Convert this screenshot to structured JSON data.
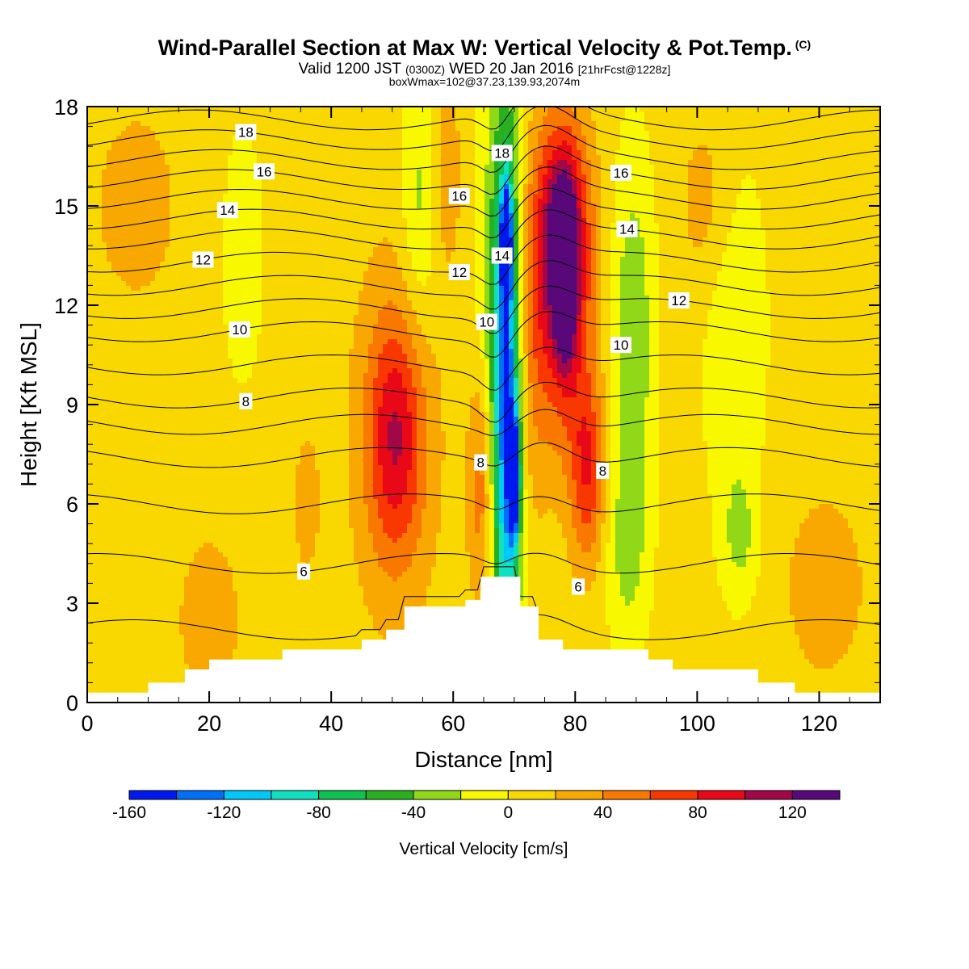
{
  "header": {
    "title": "Wind-Parallel Section at Max W: Vertical Velocity & Pot.Temp.",
    "copyright": "(C)",
    "valid_prefix": "Valid 1200 JST",
    "valid_utc": "(0300Z)",
    "valid_date": "WED 20 Jan 2016",
    "forecast": "[21hrFcst@1228z]",
    "boxwmax": "boxWmax=102@37.23,139.93,2074m"
  },
  "chart_data": {
    "type": "heatmap",
    "xlabel": "Distance [nm]",
    "ylabel": "Height [Kft MSL]",
    "xlim": [
      0,
      130
    ],
    "ylim": [
      0,
      18
    ],
    "x_ticks": [
      0,
      20,
      40,
      60,
      80,
      100,
      120
    ],
    "y_ticks": [
      0,
      3,
      6,
      9,
      12,
      15,
      18
    ],
    "grid": false,
    "colorbar": {
      "label": "Vertical Velocity [cm/s]",
      "levels": [
        -160,
        -140,
        -120,
        -100,
        -80,
        -60,
        -40,
        -20,
        0,
        20,
        40,
        60,
        80,
        100,
        120,
        140
      ],
      "tick_labels": [
        "-160",
        "-120",
        "-80",
        "-40",
        "0",
        "40",
        "80",
        "120"
      ],
      "colors": [
        "#0018f0",
        "#0070f8",
        "#00c8f8",
        "#10e0c0",
        "#10c050",
        "#28b020",
        "#90d818",
        "#f8f800",
        "#f8d800",
        "#f8a800",
        "#f87800",
        "#f83800",
        "#e80818",
        "#a00848",
        "#580878"
      ]
    },
    "field_blobs": [
      {
        "x": 67.5,
        "y": 9.0,
        "rx": 3.6,
        "ry": 9.5,
        "w": -60
      },
      {
        "x": 68.8,
        "y": 9.5,
        "rx": 2.0,
        "ry": 8.0,
        "w": -105
      },
      {
        "x": 68.7,
        "y": 14.0,
        "rx": 0.8,
        "ry": 1.5,
        "w": -150
      },
      {
        "x": 70.0,
        "y": 6.8,
        "rx": 0.9,
        "ry": 1.8,
        "w": -150
      },
      {
        "x": 78.0,
        "y": 12.5,
        "rx": 4.5,
        "ry": 4.5,
        "w": 95
      },
      {
        "x": 78.3,
        "y": 13.0,
        "rx": 1.5,
        "ry": 2.2,
        "w": 120
      },
      {
        "x": 77.5,
        "y": 14.5,
        "rx": 4.5,
        "ry": 3.0,
        "w": 60
      },
      {
        "x": 82.0,
        "y": 7.0,
        "rx": 2.8,
        "ry": 2.8,
        "w": 68
      },
      {
        "x": 64.8,
        "y": 6.5,
        "rx": 2.3,
        "ry": 4.0,
        "w": 65
      },
      {
        "x": 50.5,
        "y": 8.0,
        "rx": 4.5,
        "ry": 3.5,
        "w": 68
      },
      {
        "x": 50.5,
        "y": 8.0,
        "rx": 7.5,
        "ry": 6.0,
        "w": 28
      },
      {
        "x": 20.0,
        "y": 2.5,
        "rx": 5.0,
        "ry": 2.5,
        "w": 28
      },
      {
        "x": 36.0,
        "y": 6.0,
        "rx": 2.0,
        "ry": 2.0,
        "w": 28
      },
      {
        "x": 59.0,
        "y": 16.0,
        "rx": 2.5,
        "ry": 3.0,
        "w": 25
      },
      {
        "x": 73.0,
        "y": 10.0,
        "rx": 2.5,
        "ry": 5.0,
        "w": 25
      },
      {
        "x": 89.5,
        "y": 11.0,
        "rx": 3.5,
        "ry": 5.5,
        "w": -45
      },
      {
        "x": 88.5,
        "y": 4.5,
        "rx": 3.5,
        "ry": 3.0,
        "w": -30
      },
      {
        "x": 106.0,
        "y": 11.5,
        "rx": 5.0,
        "ry": 5.5,
        "w": -30
      },
      {
        "x": 107.0,
        "y": 5.0,
        "rx": 3.0,
        "ry": 2.0,
        "w": -30
      },
      {
        "x": 54.5,
        "y": 15.0,
        "rx": 3.0,
        "ry": 4.0,
        "w": -35
      },
      {
        "x": 25.5,
        "y": 13.5,
        "rx": 3.0,
        "ry": 3.5,
        "w": -28
      },
      {
        "x": 102.0,
        "y": 15.0,
        "rx": 5.0,
        "ry": 3.0,
        "w": 25
      },
      {
        "x": 121.0,
        "y": 3.5,
        "rx": 7.0,
        "ry": 3.0,
        "w": 24
      },
      {
        "x": 8.0,
        "y": 15.0,
        "rx": 7.0,
        "ry": 3.0,
        "w": 24
      }
    ],
    "terrain": [
      [
        0,
        0.3
      ],
      [
        10,
        0.3
      ],
      [
        10,
        0.6
      ],
      [
        16,
        0.6
      ],
      [
        16,
        1.0
      ],
      [
        20,
        1.0
      ],
      [
        20,
        1.3
      ],
      [
        32,
        1.3
      ],
      [
        32,
        1.6
      ],
      [
        45,
        1.6
      ],
      [
        45,
        1.9
      ],
      [
        49,
        1.9
      ],
      [
        49,
        2.2
      ],
      [
        52,
        2.2
      ],
      [
        52,
        2.9
      ],
      [
        62,
        2.9
      ],
      [
        62,
        3.1
      ],
      [
        64.5,
        3.1
      ],
      [
        64.5,
        3.8
      ],
      [
        71,
        3.8
      ],
      [
        71,
        2.9
      ],
      [
        74,
        2.9
      ],
      [
        74,
        1.9
      ],
      [
        78,
        1.9
      ],
      [
        78,
        1.6
      ],
      [
        92,
        1.6
      ],
      [
        92,
        1.3
      ],
      [
        96,
        1.3
      ],
      [
        96,
        1.0
      ],
      [
        110,
        1.0
      ],
      [
        110,
        0.6
      ],
      [
        116,
        0.6
      ],
      [
        116,
        0.3
      ],
      [
        130,
        0.3
      ]
    ],
    "isentropes": [
      {
        "base": 2.2,
        "label": null
      },
      {
        "base": 4.2,
        "label": "6",
        "lx": 35.5
      },
      {
        "base": 6.0,
        "label": null
      },
      {
        "base": 7.4,
        "label": "8",
        "lx": 64.5
      },
      {
        "base": 8.4,
        "label": null
      },
      {
        "base": 9.2,
        "label": "8",
        "lx": 26
      },
      {
        "base": 10.2,
        "label": null
      },
      {
        "base": 11.2,
        "label": "10",
        "lx": 25
      },
      {
        "base": 11.9,
        "label": "12",
        "lx": 97
      },
      {
        "base": 12.6,
        "label": null
      },
      {
        "base": 13.3,
        "label": "12",
        "lx": 19
      },
      {
        "base": 14.0,
        "label": null
      },
      {
        "base": 14.6,
        "label": "14",
        "lx": 23
      },
      {
        "base": 15.2,
        "label": null
      },
      {
        "base": 15.8,
        "label": "16",
        "lx": 29
      },
      {
        "base": 16.4,
        "label": null
      },
      {
        "base": 17.0,
        "label": "18",
        "lx": 26
      },
      {
        "base": 17.6,
        "label": null
      }
    ],
    "isentrope_labels": [
      {
        "text": "16",
        "x": 61.0,
        "y": 15.3
      },
      {
        "text": "18",
        "x": 68.0,
        "y": 16.6
      },
      {
        "text": "14",
        "x": 68.0,
        "y": 13.5
      },
      {
        "text": "12",
        "x": 61.0,
        "y": 13.0
      },
      {
        "text": "10",
        "x": 65.5,
        "y": 11.5
      },
      {
        "text": "16",
        "x": 87.5,
        "y": 16.0
      },
      {
        "text": "14",
        "x": 88.5,
        "y": 14.3
      },
      {
        "text": "10",
        "x": 87.5,
        "y": 10.8
      },
      {
        "text": "8",
        "x": 84.5,
        "y": 7.0
      },
      {
        "text": "6",
        "x": 80.5,
        "y": 3.5
      }
    ]
  }
}
